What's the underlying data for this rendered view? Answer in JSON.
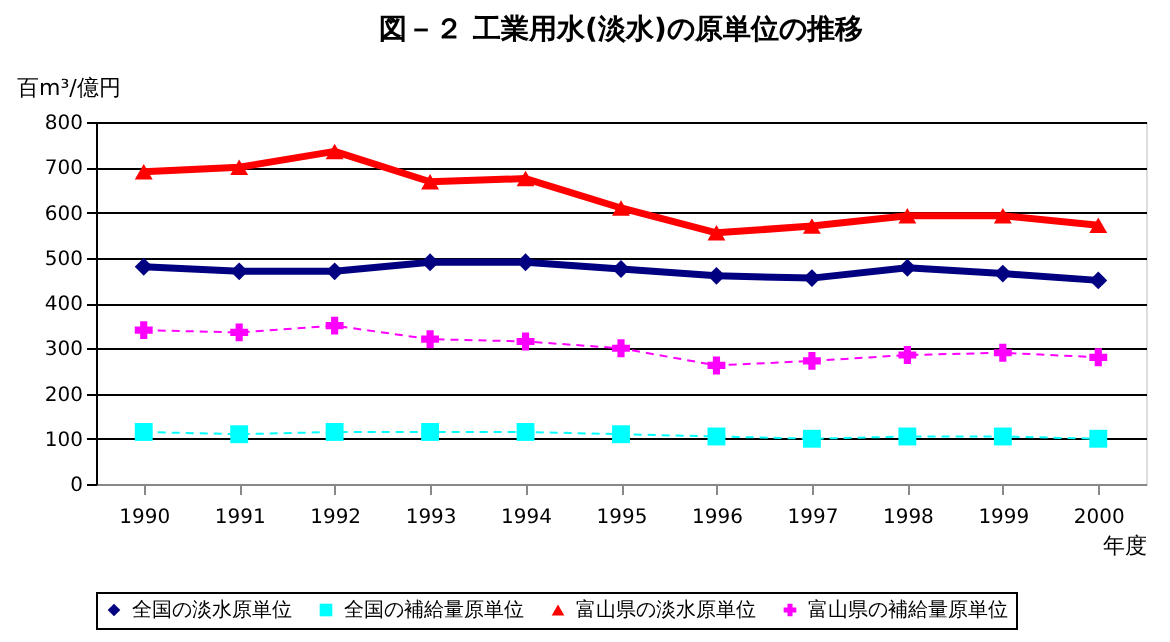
{
  "chart_data": {
    "type": "line",
    "title": "図－２ 工業用水(淡水)の原単位の推移",
    "xlabel": "年度",
    "ylabel": "百m³/億円",
    "categories": [
      "1990",
      "1991",
      "1992",
      "1993",
      "1994",
      "1995",
      "1996",
      "1997",
      "1998",
      "1999",
      "2000"
    ],
    "series": [
      {
        "name": "全国の淡水原単位",
        "color": "#000080",
        "marker": "diamond",
        "line_style": "solid",
        "values": [
          480,
          470,
          470,
          490,
          490,
          475,
          460,
          455,
          478,
          465,
          450
        ]
      },
      {
        "name": "全国の補給量原単位",
        "color": "#00ffff",
        "marker": "square",
        "line_style": "dashed",
        "values": [
          115,
          110,
          115,
          115,
          115,
          110,
          105,
          100,
          105,
          105,
          100
        ]
      },
      {
        "name": "富山県の淡水原単位",
        "color": "#ff0000",
        "marker": "triangle",
        "line_style": "solid",
        "values": [
          690,
          700,
          735,
          668,
          675,
          610,
          555,
          570,
          593,
          593,
          572
        ]
      },
      {
        "name": "富山県の補給量原単位",
        "color": "#ff00ff",
        "marker": "cross",
        "line_style": "dashed",
        "values": [
          340,
          335,
          350,
          320,
          315,
          300,
          262,
          272,
          285,
          290,
          280
        ]
      }
    ],
    "ylim": [
      0,
      800
    ],
    "yticks": [
      0,
      100,
      200,
      300,
      400,
      500,
      600,
      700,
      800
    ],
    "grid": "y",
    "legend": "bottom"
  }
}
